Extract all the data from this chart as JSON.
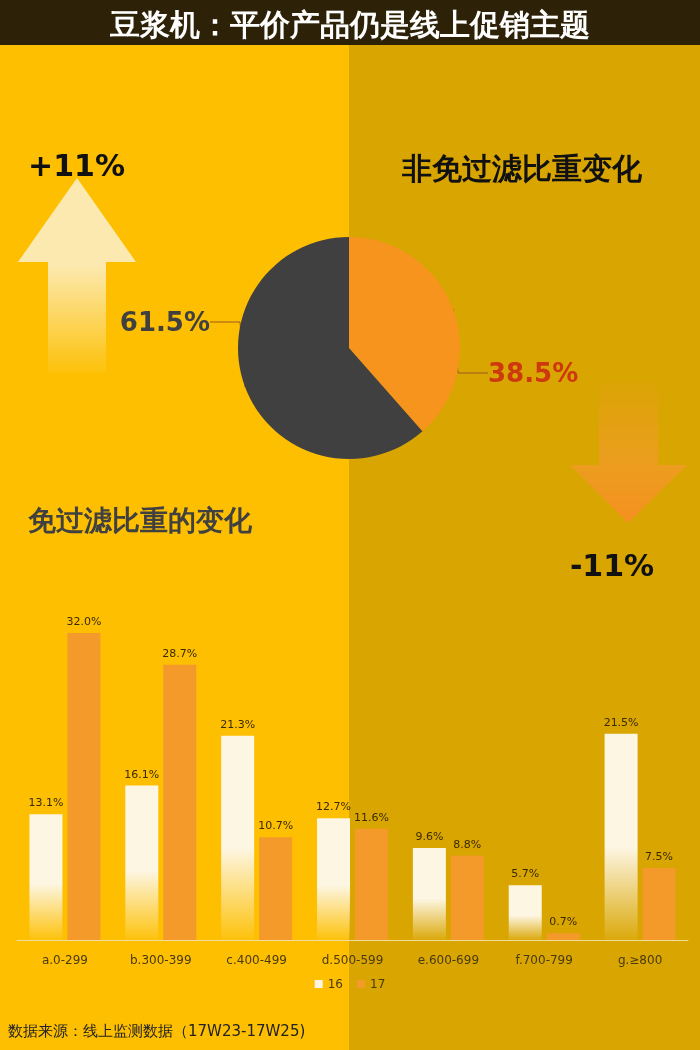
{
  "chart_data": [
    {
      "type": "pie",
      "title": "豆浆机：平价产品仍是线上促销主题",
      "categories": [
        null,
        null
      ],
      "values": [
        38.5,
        61.5
      ],
      "colors": [
        "#F7941E",
        "#404040"
      ],
      "value_labels": [
        "38.5%",
        "61.5%"
      ],
      "annotations": [
        "+11%",
        "非免过滤比重变化",
        "免过滤比重的变化",
        "-11%"
      ]
    },
    {
      "type": "bar",
      "categories": [
        "a.0-299",
        "b.300-399",
        "c.400-499",
        "d.500-599",
        "e.600-699",
        "f.700-799",
        "g.≥800"
      ],
      "series": [
        {
          "name": "16",
          "color": "#FDF6E3",
          "values": [
            13.1,
            16.1,
            21.3,
            12.7,
            9.6,
            5.7,
            21.5
          ],
          "value_labels": [
            "13.1%",
            "16.1%",
            "21.3%",
            "12.7%",
            "9.6%",
            "5.7%",
            "21.5%"
          ]
        },
        {
          "name": "17",
          "color": "#F39A2B",
          "values": [
            32.0,
            28.7,
            10.7,
            11.6,
            8.8,
            0.7,
            7.5
          ],
          "value_labels": [
            "32.0%",
            "28.7%",
            "10.7%",
            "11.6%",
            "8.8%",
            "0.7%",
            "7.5%"
          ]
        }
      ],
      "legend": "bottom",
      "annotations": [
        "数据来源：线上监测数据（17W23-17W25)"
      ]
    }
  ]
}
